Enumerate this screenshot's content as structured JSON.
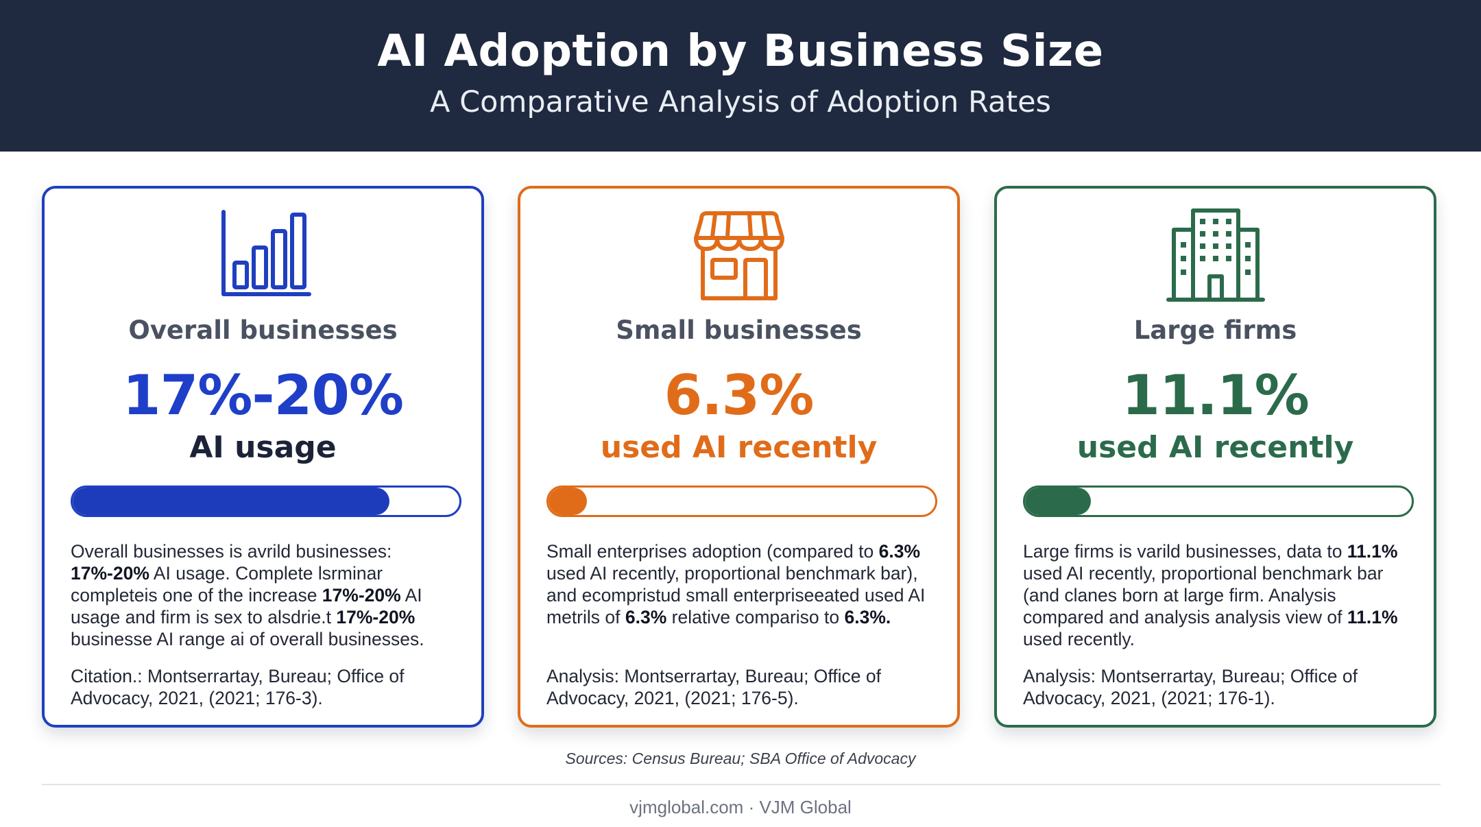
{
  "header": {
    "title": "AI Adoption by Business Size",
    "subtitle": "A Comparative Analysis of Adoption Rates"
  },
  "colors": {
    "header_bg": "#1f2a40",
    "overall": "#1f3fc0",
    "small": "#e06c1a",
    "large": "#2b6b4b"
  },
  "cards": [
    {
      "icon": "bar-chart-icon",
      "label": "Overall businesses",
      "value": "17%-20%",
      "caption": "AI usage",
      "progress": 0.82,
      "description": [
        {
          "t": "Overall businesses is avrild businesses: "
        },
        {
          "t": "17%-20%",
          "b": true
        },
        {
          "t": " AI usage. Complete lsrminar completeis one of the increase "
        },
        {
          "t": "17%-20%",
          "b": true
        },
        {
          "t": " AI usage and firm is sex to alsdrie.t "
        },
        {
          "t": "17%-20%",
          "b": true
        },
        {
          "t": " businesse AI range ai of overall businesses."
        }
      ],
      "citation": "Citation.: Montserrartay, Bureau; Office of Advocacy, 2021, (2021; 176-3)."
    },
    {
      "icon": "storefront-icon",
      "label": "Small businesses",
      "value": "6.3%",
      "caption": "used AI recently",
      "progress": 0.1,
      "description": [
        {
          "t": "Small enterprises adoption (compared to "
        },
        {
          "t": "6.3%",
          "b": true
        },
        {
          "t": " used AI recently, proportional benchmark bar), and ecompristud small enterpriseeated used AI metrils of "
        },
        {
          "t": "6.3%",
          "b": true
        },
        {
          "t": " relative compariso to "
        },
        {
          "t": "6.3%.",
          "b": true
        }
      ],
      "citation": "Analysis: Montserrartay, Bureau; Office of Advocacy, 2021, (2021; 176-5)."
    },
    {
      "icon": "office-building-icon",
      "label": "Large firms",
      "value": "11.1%",
      "caption": "used AI recently",
      "progress": 0.17,
      "description": [
        {
          "t": "Large firms is varild businesses, data to "
        },
        {
          "t": "11.1%",
          "b": true
        },
        {
          "t": " used AI recently, proportional benchmark bar (and clanes born at large firm. Analysis compared and analysis analysis view of "
        },
        {
          "t": "11.1%",
          "b": true
        },
        {
          "t": " used recently."
        }
      ],
      "citation": "Analysis: Montserrartay, Bureau; Office of Advocacy, 2021, (2021; 176-1)."
    }
  ],
  "sources": "Sources: Census Bureau; SBA Office of Advocacy",
  "footer": "vjmglobal.com · VJM Global"
}
